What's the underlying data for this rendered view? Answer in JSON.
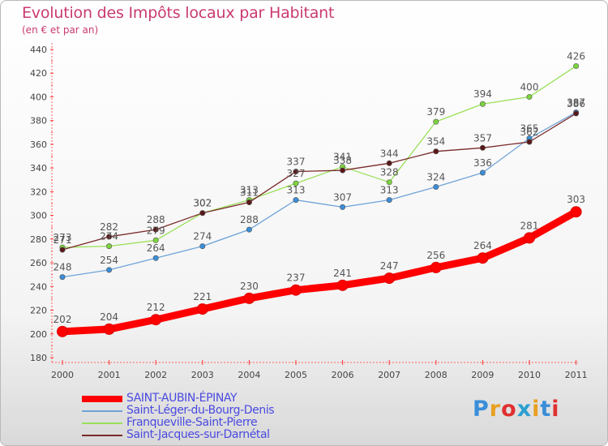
{
  "title": "Evolution des Impôts locaux par Habitant",
  "subtitle": "(en € et par an)",
  "chart_data": {
    "type": "line",
    "x": [
      "2000",
      "2001",
      "2002",
      "2003",
      "2004",
      "2005",
      "2006",
      "2007",
      "2008",
      "2009",
      "2010",
      "2011"
    ],
    "ylim": [
      180,
      440
    ],
    "yticks": [
      180,
      200,
      220,
      240,
      260,
      280,
      300,
      320,
      340,
      360,
      380,
      400,
      420,
      440
    ],
    "grid": false,
    "legend_position": "bottom-left",
    "series": [
      {
        "name": "SAINT-AUBIN-ÉPINAY",
        "color": "#ff0000",
        "values": [
          202,
          204,
          212,
          221,
          230,
          237,
          241,
          247,
          256,
          264,
          281,
          303
        ]
      },
      {
        "name": "Saint-Léger-du-Bourg-Denis",
        "color": "#6fa3d8",
        "marker": "#3a8ed9",
        "values": [
          248,
          254,
          264,
          274,
          288,
          313,
          307,
          313,
          324,
          336,
          365,
          387
        ]
      },
      {
        "name": "Franqueville-Saint-Pierre",
        "color": "#9ae05a",
        "marker": "#7dd33e",
        "values": [
          273,
          274,
          279,
          302,
          313,
          327,
          341,
          328,
          379,
          394,
          400,
          426
        ]
      },
      {
        "name": "Saint-Jacques-sur-Darnétal",
        "color": "#7a2a2a",
        "marker": "#5a1818",
        "values": [
          271,
          282,
          288,
          302,
          311,
          337,
          338,
          344,
          354,
          357,
          362,
          386
        ]
      }
    ]
  },
  "logo": {
    "text": "Proxiti",
    "colors": [
      "#3a8ed9",
      "#e8a020",
      "#e03030",
      "#2aa0d0",
      "#e8a020",
      "#3a8ed9",
      "#e03030"
    ]
  }
}
